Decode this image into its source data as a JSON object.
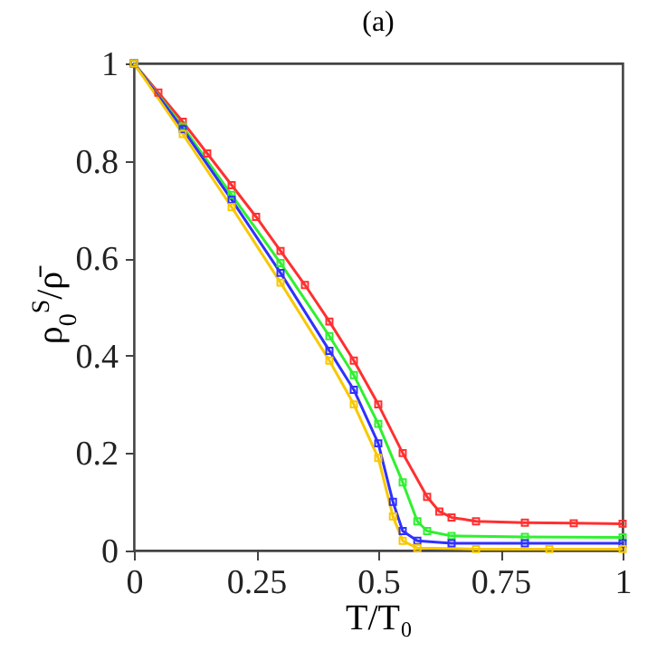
{
  "chart_data": {
    "type": "line",
    "title": "(a)",
    "xlabel": "T/T₀",
    "ylabel": "ρ$_{0}$$^{S}$/ρ̄",
    "marker": "square",
    "grid": false,
    "legend": false,
    "xlim": [
      0,
      1
    ],
    "ylim": [
      0,
      1
    ],
    "xticks": [
      0,
      0.25,
      0.5,
      0.75,
      1
    ],
    "yticks": [
      0,
      0.2,
      0.4,
      0.6,
      0.8,
      1
    ],
    "series": [
      {
        "color": "#ff3030",
        "x": [
          0,
          0.05,
          0.1,
          0.15,
          0.2,
          0.25,
          0.3,
          0.35,
          0.4,
          0.45,
          0.5,
          0.55,
          0.6,
          0.625,
          0.65,
          0.7,
          0.8,
          0.9,
          1
        ],
        "values": [
          1,
          0.94,
          0.88,
          0.815,
          0.75,
          0.685,
          0.615,
          0.545,
          0.47,
          0.39,
          0.3,
          0.2,
          0.11,
          0.08,
          0.068,
          0.06,
          0.057,
          0.056,
          0.055
        ]
      },
      {
        "color": "#30f030",
        "x": [
          0,
          0.1,
          0.2,
          0.3,
          0.4,
          0.45,
          0.5,
          0.55,
          0.58,
          0.6,
          0.65,
          0.8,
          1
        ],
        "values": [
          1,
          0.87,
          0.73,
          0.59,
          0.44,
          0.36,
          0.26,
          0.14,
          0.06,
          0.04,
          0.03,
          0.028,
          0.027
        ]
      },
      {
        "color": "#3030ff",
        "x": [
          0,
          0.1,
          0.2,
          0.3,
          0.4,
          0.45,
          0.5,
          0.53,
          0.55,
          0.58,
          0.65,
          0.8,
          1
        ],
        "values": [
          1,
          0.865,
          0.72,
          0.57,
          0.41,
          0.33,
          0.22,
          0.1,
          0.04,
          0.02,
          0.015,
          0.015,
          0.015
        ]
      },
      {
        "color": "#f8c800",
        "x": [
          0,
          0.1,
          0.2,
          0.3,
          0.4,
          0.45,
          0.5,
          0.53,
          0.55,
          0.58,
          0.7,
          0.85,
          1
        ],
        "values": [
          1,
          0.855,
          0.705,
          0.55,
          0.39,
          0.3,
          0.19,
          0.07,
          0.02,
          0.005,
          0.003,
          0.003,
          0.003
        ]
      }
    ]
  }
}
